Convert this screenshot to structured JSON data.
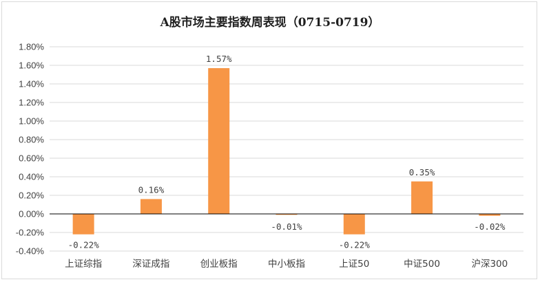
{
  "chart_data": {
    "type": "bar",
    "title": "A股市场主要指数周表现（0715-0719）",
    "xlabel": "",
    "ylabel": "",
    "categories": [
      "上证综指",
      "深证成指",
      "创业板指",
      "中小板指",
      "上证50",
      "中证500",
      "沪深300"
    ],
    "values": [
      -0.22,
      0.16,
      1.57,
      -0.01,
      -0.22,
      0.35,
      -0.02
    ],
    "data_labels": [
      "-0.22%",
      "0.16%",
      "1.57%",
      "-0.01%",
      "-0.22%",
      "0.35%",
      "-0.02%"
    ],
    "yticks": [
      "1.80%",
      "1.60%",
      "1.40%",
      "1.20%",
      "1.00%",
      "0.80%",
      "0.60%",
      "0.40%",
      "0.20%",
      "0.00%",
      "-0.20%",
      "-0.40%"
    ],
    "ylim": [
      -0.4,
      1.8
    ],
    "grid": true,
    "legend": "none",
    "bar_color": "#f79646",
    "grid_color": "#d9d9d9",
    "axis_color": "#000000"
  }
}
